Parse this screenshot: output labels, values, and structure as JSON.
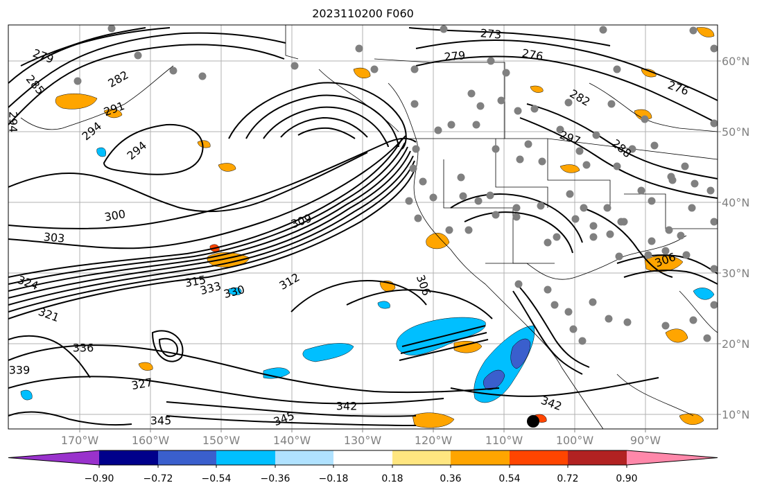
{
  "title": "2023110200 F060",
  "lon_labels": [
    "170°W",
    "160°W",
    "150°W",
    "140°W",
    "130°W",
    "120°W",
    "110°W",
    "100°W",
    "90°W"
  ],
  "lat_labels": [
    "60°N",
    "50°N",
    "40°N",
    "30°N",
    "20°N",
    "10°N"
  ],
  "colorbar": {
    "tick_labels": [
      "−0.90",
      "−0.72",
      "−0.54",
      "−0.36",
      "−0.18",
      "0.18",
      "0.36",
      "0.54",
      "0.72",
      "0.90"
    ],
    "colors": [
      "#9932CC",
      "#00008B",
      "#3A5FCD",
      "#00BFFF",
      "#B0E2FF",
      "#FFFFFF",
      "#FFE680",
      "#FFA500",
      "#FF4500",
      "#B22222",
      "#FF88AA"
    ],
    "extend": "both"
  },
  "contour_labels": [
    {
      "text": "273"
    },
    {
      "text": "276"
    },
    {
      "text": "276"
    },
    {
      "text": "279"
    },
    {
      "text": "279"
    },
    {
      "text": "282"
    },
    {
      "text": "282"
    },
    {
      "text": "285"
    },
    {
      "text": "288"
    },
    {
      "text": "291"
    },
    {
      "text": "294"
    },
    {
      "text": "294"
    },
    {
      "text": "294"
    },
    {
      "text": "297"
    },
    {
      "text": "300"
    },
    {
      "text": "303"
    },
    {
      "text": "306"
    },
    {
      "text": "306"
    },
    {
      "text": "309"
    },
    {
      "text": "312"
    },
    {
      "text": "315"
    },
    {
      "text": "321"
    },
    {
      "text": "324"
    },
    {
      "text": "327"
    },
    {
      "text": "330"
    },
    {
      "text": "333"
    },
    {
      "text": "336"
    },
    {
      "text": "339"
    },
    {
      "text": "342"
    },
    {
      "text": "342"
    },
    {
      "text": "345"
    },
    {
      "text": "345"
    }
  ],
  "colors": {
    "orange": "#FFA500",
    "light_orange": "#FFE680",
    "cyan": "#00BFFF",
    "blue": "#3A5FCD",
    "red": "#FF4500",
    "gray_marker": "#808080",
    "black_marker": "#000000"
  }
}
